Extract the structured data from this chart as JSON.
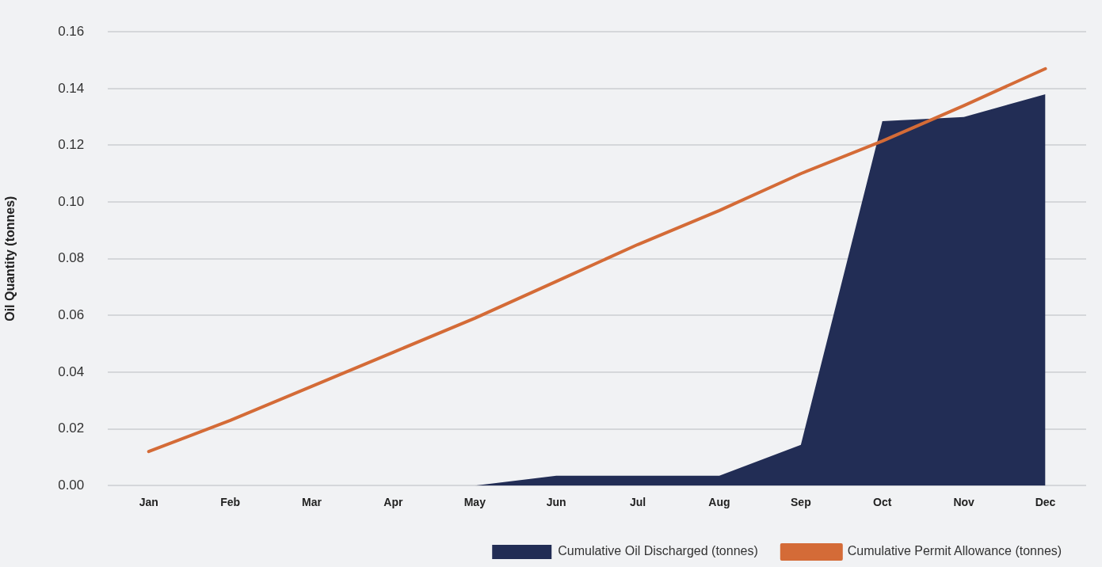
{
  "chart_data": {
    "type": "area",
    "ylabel": "Oil Quantity (tonnes)",
    "categories": [
      "Jan",
      "Feb",
      "Mar",
      "Apr",
      "May",
      "Jun",
      "Jul",
      "Aug",
      "Sep",
      "Oct",
      "Nov",
      "Dec"
    ],
    "series": [
      {
        "name": "Cumulative Oil Discharged (tonnes)",
        "color": "#222d55",
        "values": [
          null,
          null,
          null,
          null,
          0,
          0.0035,
          0.0035,
          0.0035,
          0.0144,
          0.1285,
          0.13,
          0.138
        ]
      },
      {
        "name": "Cumulative Permit Allowance (tonnes)",
        "type": "line",
        "color": "#d46b37",
        "values": [
          0.012,
          0.023,
          0.035,
          0.047,
          0.059,
          0.072,
          0.085,
          0.097,
          0.11,
          0.1215,
          0.134,
          0.147
        ]
      }
    ],
    "ylim": [
      0,
      0.16
    ],
    "yticks": [
      {
        "value": 0,
        "label": "0.00"
      },
      {
        "value": 0.02,
        "label": "0.02"
      },
      {
        "value": 0.04,
        "label": "0.04"
      },
      {
        "value": 0.06,
        "label": "0.06"
      },
      {
        "value": 0.08,
        "label": "0.08"
      },
      {
        "value": 0.1,
        "label": "0.10"
      },
      {
        "value": 0.12,
        "label": "0.12"
      },
      {
        "value": 0.14,
        "label": "0.14"
      },
      {
        "value": 0.16,
        "label": "0.16"
      }
    ],
    "grid": "y",
    "legend": "bottom right"
  }
}
